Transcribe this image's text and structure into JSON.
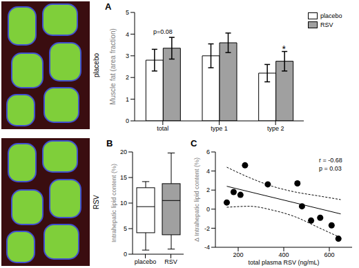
{
  "chart_data": [
    {
      "type": "bar",
      "panel_label": "A",
      "image_labels": [
        "placebo",
        "RSV"
      ],
      "categories": [
        "total",
        "type 1",
        "type 2"
      ],
      "y_label": "Muscle fat (area fraction)",
      "series": [
        {
          "name": "placebo",
          "color": "#ffffff",
          "values": [
            2.8,
            3.0,
            2.2
          ],
          "errors": [
            0.5,
            0.55,
            0.4
          ]
        },
        {
          "name": "RSV",
          "color": "#a0a0a0",
          "values": [
            3.35,
            3.6,
            2.75
          ],
          "errors": [
            0.5,
            0.45,
            0.45
          ]
        }
      ],
      "ylim": [
        0,
        5
      ],
      "yticks": [
        0,
        1,
        2,
        3,
        4,
        5
      ],
      "legend": "top right",
      "annotations": [
        {
          "text": "p=0.08",
          "category": "total",
          "y": 4.1
        },
        {
          "text": "*",
          "category": "type 2",
          "series": "RSV",
          "y": 3.3
        }
      ]
    },
    {
      "type": "box",
      "panel_label": "B",
      "categories": [
        "placebo",
        "RSV"
      ],
      "y_label": "Intrahepatic lipid content (%)",
      "colors": [
        "#ffffff",
        "#a0a0a0"
      ],
      "min": [
        0.8,
        1.0
      ],
      "q1": [
        4.2,
        3.8
      ],
      "median": [
        9.3,
        10.5
      ],
      "q3": [
        13.0,
        13.8
      ],
      "max": [
        14.2,
        19.8
      ],
      "ylim": [
        0,
        20
      ],
      "yticks": [
        0,
        5,
        10,
        15,
        20
      ]
    },
    {
      "type": "scatter",
      "panel_label": "C",
      "x_label": "total plasma RSV (ng/mL)",
      "y_label": "Δ Intrahepatic lipid content (%)",
      "x": [
        150,
        180,
        210,
        230,
        330,
        460,
        480,
        520,
        560,
        610,
        640
      ],
      "values": [
        0.7,
        1.8,
        1.5,
        4.6,
        2.6,
        2.7,
        0.3,
        -1.2,
        -0.9,
        -1.7,
        -3.1
      ],
      "color": "#000000",
      "xlim": [
        100,
        700
      ],
      "xticks": [
        200,
        400,
        600
      ],
      "ylim": [
        -4,
        6
      ],
      "yticks": [
        -4,
        -2,
        0,
        2,
        4,
        6
      ],
      "fit": {
        "x": [
          150,
          650
        ],
        "values": [
          2.4,
          -0.5
        ]
      },
      "ci_upper": {
        "x": [
          150,
          250,
          350,
          450,
          550,
          650
        ],
        "values": [
          4.4,
          3.3,
          2.4,
          1.8,
          1.4,
          1.0
        ]
      },
      "ci_lower": {
        "x": [
          150,
          250,
          350,
          450,
          550,
          650
        ],
        "values": [
          0.2,
          0.3,
          -0.1,
          -0.8,
          -1.9,
          -3.0
        ]
      },
      "annotations": [
        "r = -0.68",
        "p = 0.03"
      ]
    }
  ]
}
